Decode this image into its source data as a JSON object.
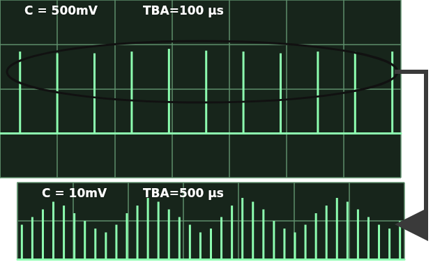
{
  "chart_data": [
    {
      "type": "bar",
      "title": "C = 500mV",
      "subtitle": "TBA=100 µs",
      "x": [
        35,
        100,
        165,
        230,
        295,
        360,
        425,
        490,
        555,
        620,
        685
      ],
      "values": [
        0.92,
        0.9,
        0.9,
        0.92,
        0.95,
        0.93,
        0.92,
        0.9,
        0.92,
        0.92,
        0.92
      ],
      "xlim": [
        0,
        700
      ],
      "xticks": [
        0,
        100,
        200,
        300,
        400,
        500,
        600,
        700
      ],
      "ylim": [
        -0.5,
        1.5
      ],
      "yticks": [
        -0.5,
        0,
        0.5,
        1,
        1.5
      ],
      "color": "#8dffb0",
      "grid": true,
      "tick_labels": false
    },
    {
      "type": "bar",
      "title": "C = 10mV",
      "subtitle": "TBA=500 µs",
      "x": [
        40,
        135,
        230,
        325,
        420,
        515,
        610,
        705,
        800,
        895,
        990,
        1085,
        1180,
        1275,
        1370,
        1465,
        1560,
        1655,
        1750,
        1845,
        1940,
        2035,
        2130,
        2225,
        2320,
        2415,
        2510,
        2605,
        2700,
        2795,
        2890,
        2985,
        3080,
        3175,
        3270,
        3365,
        3460
      ],
      "values": [
        9,
        11,
        13,
        15,
        14,
        12,
        10,
        8,
        7,
        9,
        12,
        14,
        16,
        15,
        13,
        11,
        9,
        7,
        8,
        11,
        14,
        16,
        15,
        13,
        10,
        8,
        7,
        9,
        12,
        14,
        16,
        15,
        13,
        11,
        9,
        8,
        10
      ],
      "xlim": [
        0,
        3500
      ],
      "xticks": [
        0,
        500,
        1000,
        1500,
        2000,
        2500,
        3000,
        3500
      ],
      "ylim": [
        0,
        20
      ],
      "yticks": [
        0,
        10,
        20
      ],
      "color": "#8dffb0",
      "grid": true,
      "tick_labels": false
    }
  ]
}
